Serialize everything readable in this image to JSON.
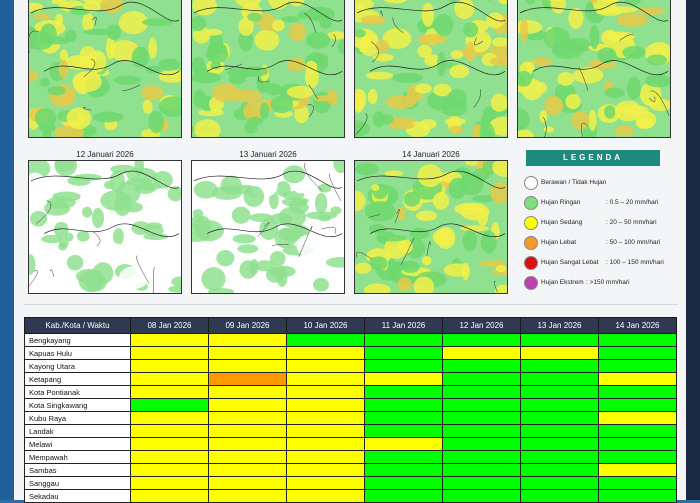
{
  "maps": {
    "row1": [
      {
        "title": "",
        "rain": "moderate"
      },
      {
        "title": "",
        "rain": "moderate"
      },
      {
        "title": "",
        "rain": "moderate"
      },
      {
        "title": "",
        "rain": "moderate"
      }
    ],
    "row2": [
      {
        "title": "12 Januari 2026",
        "rain": "light"
      },
      {
        "title": "13 Januari 2026",
        "rain": "light"
      },
      {
        "title": "14 Januari 2026",
        "rain": "moderate"
      }
    ]
  },
  "legend": {
    "title": "LEGENDA",
    "items": [
      {
        "name": "Berawan / Tidak Hujan",
        "range": "",
        "color": "#ffffff"
      },
      {
        "name": "Hujan Ringan",
        "range": ": 0.5 – 20 mm/hari",
        "color": "#7ee07e"
      },
      {
        "name": "Hujan Sedang",
        "range": ": 20 – 50 mm/hari",
        "color": "#ffff00"
      },
      {
        "name": "Hujan Lebat",
        "range": ": 50 – 100 mm/hari",
        "color": "#f39a2b"
      },
      {
        "name": "Hujan Sangat Lebat",
        "range": ": 100 – 150 mm/hari",
        "color": "#e01010"
      },
      {
        "name": "Hujan Ekstrem",
        "range": ": >150 mm/hari",
        "color": "#c040b0"
      }
    ]
  },
  "table": {
    "corner": "Kab./Kota / Waktu",
    "dates": [
      "08 Jan 2026",
      "09 Jan 2026",
      "10 Jan 2026",
      "11 Jan 2026",
      "12 Jan 2026",
      "13 Jan 2026",
      "14 Jan 2026"
    ],
    "rows": [
      {
        "name": "Bengkayang",
        "cells": [
          "y",
          "y",
          "g",
          "g",
          "g",
          "g",
          "g"
        ]
      },
      {
        "name": "Kapuas Hulu",
        "cells": [
          "y",
          "y",
          "y",
          "g",
          "y",
          "y",
          "g"
        ]
      },
      {
        "name": "Kayong Utara",
        "cells": [
          "y",
          "y",
          "y",
          "g",
          "g",
          "g",
          "g"
        ]
      },
      {
        "name": "Ketapang",
        "cells": [
          "y",
          "o",
          "y",
          "y",
          "g",
          "g",
          "y"
        ]
      },
      {
        "name": "Kota Pontianak",
        "cells": [
          "y",
          "y",
          "y",
          "g",
          "g",
          "g",
          "g"
        ]
      },
      {
        "name": "Kota Singkawang",
        "cells": [
          "g",
          "y",
          "y",
          "g",
          "g",
          "g",
          "g"
        ]
      },
      {
        "name": "Kubu Raya",
        "cells": [
          "y",
          "y",
          "y",
          "g",
          "g",
          "g",
          "y"
        ]
      },
      {
        "name": "Landak",
        "cells": [
          "y",
          "y",
          "y",
          "g",
          "g",
          "g",
          "g"
        ]
      },
      {
        "name": "Melawi",
        "cells": [
          "y",
          "y",
          "y",
          "y",
          "g",
          "g",
          "g"
        ]
      },
      {
        "name": "Mempawah",
        "cells": [
          "y",
          "y",
          "y",
          "g",
          "g",
          "g",
          "g"
        ]
      },
      {
        "name": "Sambas",
        "cells": [
          "y",
          "y",
          "y",
          "g",
          "g",
          "g",
          "y"
        ]
      },
      {
        "name": "Sanggau",
        "cells": [
          "y",
          "y",
          "y",
          "g",
          "g",
          "g",
          "g"
        ]
      },
      {
        "name": "Sekadau",
        "cells": [
          "y",
          "y",
          "y",
          "g",
          "g",
          "g",
          "g"
        ]
      }
    ]
  }
}
